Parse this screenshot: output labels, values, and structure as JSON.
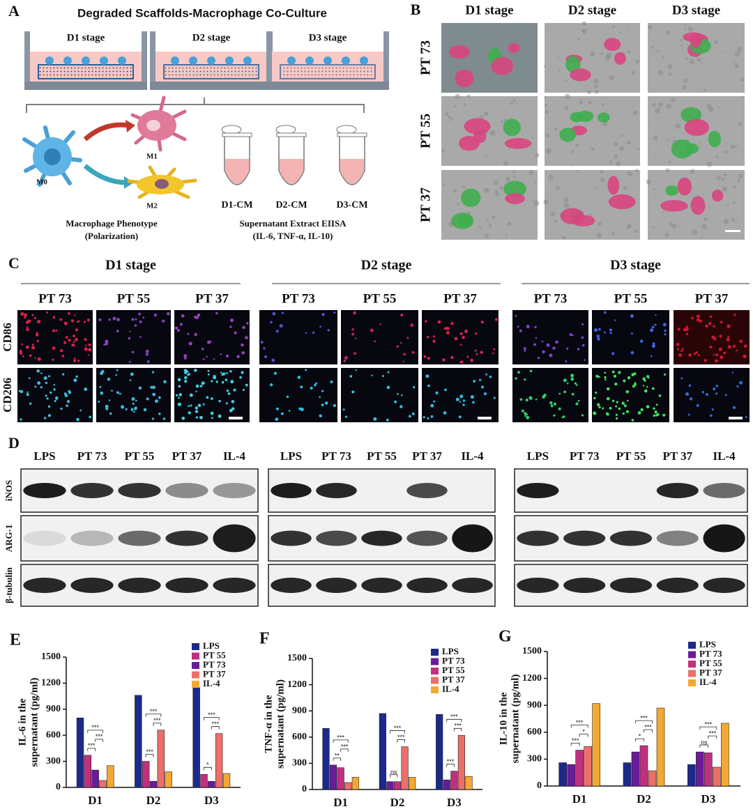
{
  "panel_a": {
    "label": "A",
    "title": "Degraded Scaffolds-Macrophage Co-Culture",
    "stages": [
      "D1 stage",
      "D2 stage",
      "D3 stage"
    ],
    "cells": [
      "M0",
      "M1",
      "M2"
    ],
    "phenotype": [
      "Macrophage Phenotype",
      "(Polarization)"
    ],
    "tubes": [
      "D1-CM",
      "D2-CM",
      "D3-CM"
    ],
    "elisa": [
      "Supernatant Extract  EIISA",
      "(IL-6, TNF-α, IL-10)"
    ]
  },
  "panel_b": {
    "label": "B",
    "columns": [
      "D1 stage",
      "D2 stage",
      "D3 stage"
    ],
    "rows": [
      "PT 73",
      "PT 55",
      "PT 37"
    ]
  },
  "panel_c": {
    "label": "C",
    "stages": [
      "D1 stage",
      "D2 stage",
      "D3 stage"
    ],
    "groups": [
      "PT 73",
      "PT 55",
      "PT 37"
    ],
    "markers": [
      "CD86",
      "CD206"
    ]
  },
  "panel_d": {
    "label": "D",
    "lanes": [
      "LPS",
      "PT 73",
      "PT 55",
      "PT 37",
      "IL-4"
    ],
    "proteins": [
      "iNOS",
      "ARG-1",
      "β-tubulin"
    ]
  },
  "chart_data": [
    {
      "type": "bar",
      "panel": "E",
      "y_label": [
        "IL-6 in the",
        "supernatant (pg/ml)"
      ],
      "categories": [
        "D1",
        "D2",
        "D3"
      ],
      "series": [
        {
          "name": "LPS",
          "color": "#1c2a8c",
          "values": [
            800,
            1060,
            1150
          ]
        },
        {
          "name": "PT 55",
          "color": "#c0307e",
          "values": [
            370,
            300,
            150
          ]
        },
        {
          "name": "PT 73",
          "color": "#6a1b9a",
          "values": [
            200,
            70,
            70
          ]
        },
        {
          "name": "PT 37",
          "color": "#ec6f6a",
          "values": [
            80,
            660,
            620
          ]
        },
        {
          "name": "IL-4",
          "color": "#f4a831",
          "values": [
            250,
            180,
            160
          ]
        }
      ],
      "ylim": [
        0,
        1500
      ],
      "yticks": [
        0,
        300,
        600,
        900,
        1200,
        1500
      ],
      "annotations": [
        {
          "category": "D1",
          "between": [
            "PT 55",
            "PT 73"
          ],
          "label": "***"
        },
        {
          "category": "D1",
          "between": [
            "PT 73",
            "PT 37"
          ],
          "label": "***"
        },
        {
          "category": "D1",
          "between": [
            "PT 55",
            "PT 37"
          ],
          "label": "***"
        },
        {
          "category": "D2",
          "between": [
            "PT 55",
            "PT 73"
          ],
          "label": "***"
        },
        {
          "category": "D2",
          "between": [
            "PT 73",
            "PT 37"
          ],
          "label": "***"
        },
        {
          "category": "D2",
          "between": [
            "PT 55",
            "PT 37"
          ],
          "label": "***"
        },
        {
          "category": "D3",
          "between": [
            "PT 55",
            "PT 73"
          ],
          "label": "*"
        },
        {
          "category": "D3",
          "between": [
            "PT 73",
            "PT 37"
          ],
          "label": "***"
        },
        {
          "category": "D3",
          "between": [
            "PT 55",
            "PT 37"
          ],
          "label": "***"
        }
      ]
    },
    {
      "type": "bar",
      "panel": "F",
      "y_label": [
        "TNF-α in the",
        "supernatant (pg/ml)"
      ],
      "categories": [
        "D1",
        "D2",
        "D3"
      ],
      "series": [
        {
          "name": "LPS",
          "color": "#1c2a8c",
          "values": [
            700,
            870,
            860
          ]
        },
        {
          "name": "PT 73",
          "color": "#6a1b9a",
          "values": [
            280,
            90,
            110
          ]
        },
        {
          "name": "PT 55",
          "color": "#c0307e",
          "values": [
            250,
            90,
            210
          ]
        },
        {
          "name": "PT 37",
          "color": "#ec6f6a",
          "values": [
            80,
            490,
            620
          ]
        },
        {
          "name": "IL-4",
          "color": "#f4a831",
          "values": [
            140,
            140,
            150
          ]
        }
      ],
      "ylim": [
        0,
        1500
      ],
      "yticks": [
        0,
        300,
        600,
        900,
        1200,
        1500
      ],
      "annotations": [
        {
          "category": "D1",
          "between": [
            "PT 73",
            "PT 55"
          ],
          "label": "**"
        },
        {
          "category": "D1",
          "between": [
            "PT 55",
            "PT 37"
          ],
          "label": "***"
        },
        {
          "category": "D1",
          "between": [
            "PT 73",
            "PT 37"
          ],
          "label": "***"
        },
        {
          "category": "D2",
          "between": [
            "PT 73",
            "PT 55"
          ],
          "label": "ns"
        },
        {
          "category": "D2",
          "between": [
            "PT 55",
            "PT 37"
          ],
          "label": "***"
        },
        {
          "category": "D2",
          "between": [
            "PT 73",
            "PT 37"
          ],
          "label": "***"
        },
        {
          "category": "D3",
          "between": [
            "PT 73",
            "PT 55"
          ],
          "label": "***"
        },
        {
          "category": "D3",
          "between": [
            "PT 55",
            "PT 37"
          ],
          "label": "***"
        },
        {
          "category": "D3",
          "between": [
            "PT 73",
            "PT 37"
          ],
          "label": "***"
        }
      ]
    },
    {
      "type": "bar",
      "panel": "G",
      "y_label": [
        "IL-10 in the",
        "supernatant (pg/ml)"
      ],
      "categories": [
        "D1",
        "D2",
        "D3"
      ],
      "series": [
        {
          "name": "LPS",
          "color": "#1c2a8c",
          "values": [
            260,
            260,
            240
          ]
        },
        {
          "name": "PT 73",
          "color": "#6a1b9a",
          "values": [
            240,
            380,
            380
          ]
        },
        {
          "name": "PT 55",
          "color": "#c0307e",
          "values": [
            400,
            450,
            370
          ]
        },
        {
          "name": "PT 37",
          "color": "#ec6f6a",
          "values": [
            440,
            170,
            210
          ]
        },
        {
          "name": "IL-4",
          "color": "#f4a831",
          "values": [
            920,
            870,
            700
          ]
        }
      ],
      "ylim": [
        0,
        1500
      ],
      "yticks": [
        0,
        300,
        600,
        900,
        1200,
        1500
      ],
      "annotations": [
        {
          "category": "D1",
          "between": [
            "PT 73",
            "PT 55"
          ],
          "label": "***"
        },
        {
          "category": "D1",
          "between": [
            "PT 55",
            "PT 37"
          ],
          "label": "*"
        },
        {
          "category": "D1",
          "between": [
            "PT 73",
            "PT 37"
          ],
          "label": "***"
        },
        {
          "category": "D2",
          "between": [
            "PT 73",
            "PT 55"
          ],
          "label": "*"
        },
        {
          "category": "D2",
          "between": [
            "PT 55",
            "PT 37"
          ],
          "label": "***"
        },
        {
          "category": "D2",
          "between": [
            "PT 73",
            "PT 37"
          ],
          "label": "***"
        },
        {
          "category": "D3",
          "between": [
            "PT 73",
            "PT 55"
          ],
          "label": "ns"
        },
        {
          "category": "D3",
          "between": [
            "PT 55",
            "PT 37"
          ],
          "label": "***"
        },
        {
          "category": "D3",
          "between": [
            "PT 73",
            "PT 37"
          ],
          "label": "***"
        }
      ]
    }
  ]
}
